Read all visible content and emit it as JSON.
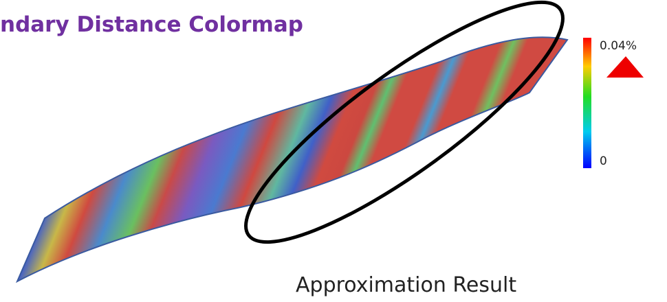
{
  "header": {
    "title": "ndary Distance Colormap"
  },
  "colorbar": {
    "max_label": "0.04%",
    "min_label": "0"
  },
  "caption": "Approximation Result"
}
